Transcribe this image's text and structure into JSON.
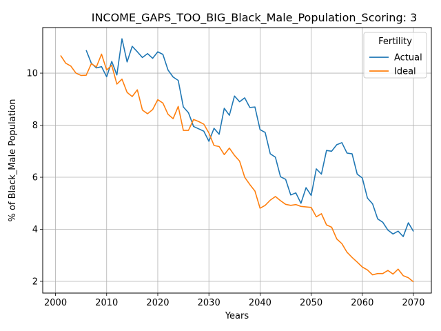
{
  "chart_data": {
    "type": "line",
    "title": "INCOME_GAPS_TOO_BIG_Black_Male_Population_Scoring: 3",
    "xlabel": "Years",
    "ylabel": "% of Black_Male Population",
    "xlim": [
      1997.5,
      2073.5
    ],
    "ylim": [
      1.55,
      11.75
    ],
    "xticks": [
      2000,
      2010,
      2020,
      2030,
      2040,
      2050,
      2060,
      2070
    ],
    "yticks": [
      2,
      4,
      6,
      8,
      10
    ],
    "grid": true,
    "legend": {
      "title": "Fertility",
      "position": "top-right"
    },
    "series": [
      {
        "name": "Actual",
        "color": "#1f77b4",
        "x": [
          2006,
          2007,
          2008,
          2009,
          2010,
          2011,
          2012,
          2013,
          2014,
          2015,
          2016,
          2017,
          2018,
          2019,
          2020,
          2021,
          2022,
          2023,
          2024,
          2025,
          2026,
          2027,
          2028,
          2029,
          2030,
          2031,
          2032,
          2033,
          2034,
          2035,
          2036,
          2037,
          2038,
          2039,
          2040,
          2041,
          2042,
          2043,
          2044,
          2045,
          2046,
          2047,
          2048,
          2049,
          2050,
          2051,
          2052,
          2053,
          2054,
          2055,
          2056,
          2057,
          2058,
          2059,
          2060,
          2061,
          2062,
          2063,
          2064,
          2065,
          2066,
          2067,
          2068,
          2069,
          2070
        ],
        "y": [
          10.88,
          10.38,
          10.2,
          10.25,
          9.86,
          10.45,
          9.93,
          11.32,
          10.43,
          11.03,
          10.82,
          10.6,
          10.75,
          10.57,
          10.82,
          10.72,
          10.12,
          9.85,
          9.72,
          8.7,
          8.48,
          7.95,
          7.86,
          7.77,
          7.38,
          7.88,
          7.65,
          8.65,
          8.38,
          9.12,
          8.9,
          9.05,
          8.68,
          8.7,
          7.83,
          7.72,
          6.9,
          6.77,
          6.02,
          5.92,
          5.32,
          5.4,
          5.0,
          5.6,
          5.3,
          6.32,
          6.12,
          7.03,
          7.0,
          7.25,
          7.33,
          6.93,
          6.9,
          6.12,
          5.97,
          5.2,
          4.98,
          4.4,
          4.27,
          3.97,
          3.82,
          3.93,
          3.72,
          4.25,
          3.92
        ]
      },
      {
        "name": "Ideal",
        "color": "#ff7f0e",
        "x": [
          2001,
          2002,
          2003,
          2004,
          2005,
          2006,
          2007,
          2008,
          2009,
          2010,
          2011,
          2012,
          2013,
          2014,
          2015,
          2016,
          2017,
          2018,
          2019,
          2020,
          2021,
          2022,
          2023,
          2024,
          2025,
          2026,
          2027,
          2028,
          2029,
          2030,
          2031,
          2032,
          2033,
          2034,
          2035,
          2036,
          2037,
          2038,
          2039,
          2040,
          2041,
          2042,
          2043,
          2044,
          2045,
          2046,
          2047,
          2048,
          2049,
          2050,
          2051,
          2052,
          2053,
          2054,
          2055,
          2056,
          2057,
          2058,
          2059,
          2060,
          2061,
          2062,
          2063,
          2064,
          2065,
          2066,
          2067,
          2068,
          2069,
          2070
        ],
        "y": [
          10.68,
          10.38,
          10.27,
          10.0,
          9.91,
          9.92,
          10.36,
          10.24,
          10.73,
          10.12,
          10.3,
          9.58,
          9.77,
          9.26,
          9.1,
          9.36,
          8.58,
          8.44,
          8.6,
          8.98,
          8.85,
          8.42,
          8.25,
          8.72,
          7.8,
          7.8,
          8.22,
          8.14,
          8.04,
          7.7,
          7.22,
          7.18,
          6.87,
          7.12,
          6.84,
          6.62,
          6.0,
          5.72,
          5.47,
          4.81,
          4.92,
          5.12,
          5.26,
          5.1,
          4.96,
          4.92,
          4.95,
          4.88,
          4.86,
          4.84,
          4.48,
          4.6,
          4.17,
          4.08,
          3.63,
          3.45,
          3.12,
          2.92,
          2.74,
          2.55,
          2.44,
          2.25,
          2.3,
          2.3,
          2.42,
          2.28,
          2.47,
          2.22,
          2.14,
          1.98
        ]
      }
    ]
  }
}
